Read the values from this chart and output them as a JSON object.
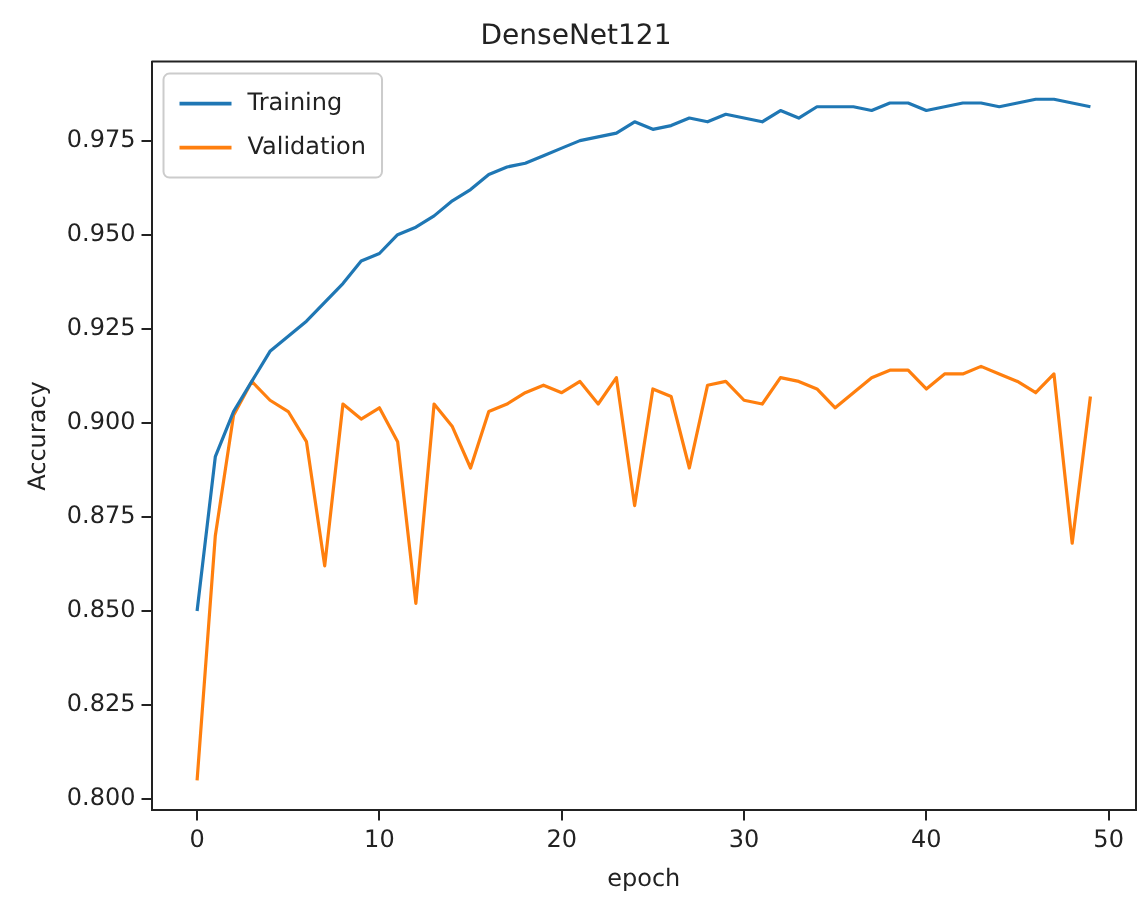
{
  "chart_data": {
    "type": "line",
    "title": "DenseNet121",
    "xlabel": "epoch",
    "ylabel": "Accuracy",
    "x": [
      0,
      1,
      2,
      3,
      4,
      5,
      6,
      7,
      8,
      9,
      10,
      11,
      12,
      13,
      14,
      15,
      16,
      17,
      18,
      19,
      20,
      21,
      22,
      23,
      24,
      25,
      26,
      27,
      28,
      29,
      30,
      31,
      32,
      33,
      34,
      35,
      36,
      37,
      38,
      39,
      40,
      41,
      42,
      43,
      44,
      45,
      46,
      47,
      48,
      49
    ],
    "series": [
      {
        "name": "Training",
        "color": "#1f77b4",
        "values": [
          0.85,
          0.891,
          0.903,
          0.911,
          0.919,
          0.923,
          0.927,
          0.932,
          0.937,
          0.943,
          0.945,
          0.95,
          0.952,
          0.955,
          0.959,
          0.962,
          0.966,
          0.968,
          0.969,
          0.971,
          0.973,
          0.975,
          0.976,
          0.977,
          0.98,
          0.978,
          0.979,
          0.981,
          0.98,
          0.982,
          0.981,
          0.98,
          0.983,
          0.981,
          0.984,
          0.984,
          0.984,
          0.983,
          0.985,
          0.985,
          0.983,
          0.984,
          0.985,
          0.985,
          0.984,
          0.985,
          0.986,
          0.986,
          0.985,
          0.984
        ]
      },
      {
        "name": "Validation",
        "color": "#ff7f0e",
        "values": [
          0.805,
          0.87,
          0.902,
          0.911,
          0.906,
          0.903,
          0.895,
          0.862,
          0.905,
          0.901,
          0.904,
          0.895,
          0.852,
          0.905,
          0.899,
          0.888,
          0.903,
          0.905,
          0.908,
          0.91,
          0.908,
          0.911,
          0.905,
          0.912,
          0.878,
          0.909,
          0.907,
          0.888,
          0.91,
          0.911,
          0.906,
          0.905,
          0.912,
          0.911,
          0.909,
          0.904,
          0.908,
          0.912,
          0.914,
          0.914,
          0.909,
          0.913,
          0.913,
          0.915,
          0.913,
          0.911,
          0.908,
          0.913,
          0.868,
          0.907
        ]
      }
    ],
    "xlim": [
      -2.5,
      51.5
    ],
    "xticks": [
      0,
      10,
      20,
      30,
      40,
      50
    ],
    "ylim": [
      0.797,
      0.996
    ],
    "yticks": [
      {
        "value": 0.8,
        "label": "0.800"
      },
      {
        "value": 0.825,
        "label": "0.825"
      },
      {
        "value": 0.85,
        "label": "0.850"
      },
      {
        "value": 0.875,
        "label": "0.875"
      },
      {
        "value": 0.9,
        "label": "0.900"
      },
      {
        "value": 0.925,
        "label": "0.925"
      },
      {
        "value": 0.95,
        "label": "0.950"
      },
      {
        "value": 0.975,
        "label": "0.975"
      }
    ],
    "grid": false,
    "legend": "top left",
    "marker": "none",
    "line_style": "solid"
  }
}
